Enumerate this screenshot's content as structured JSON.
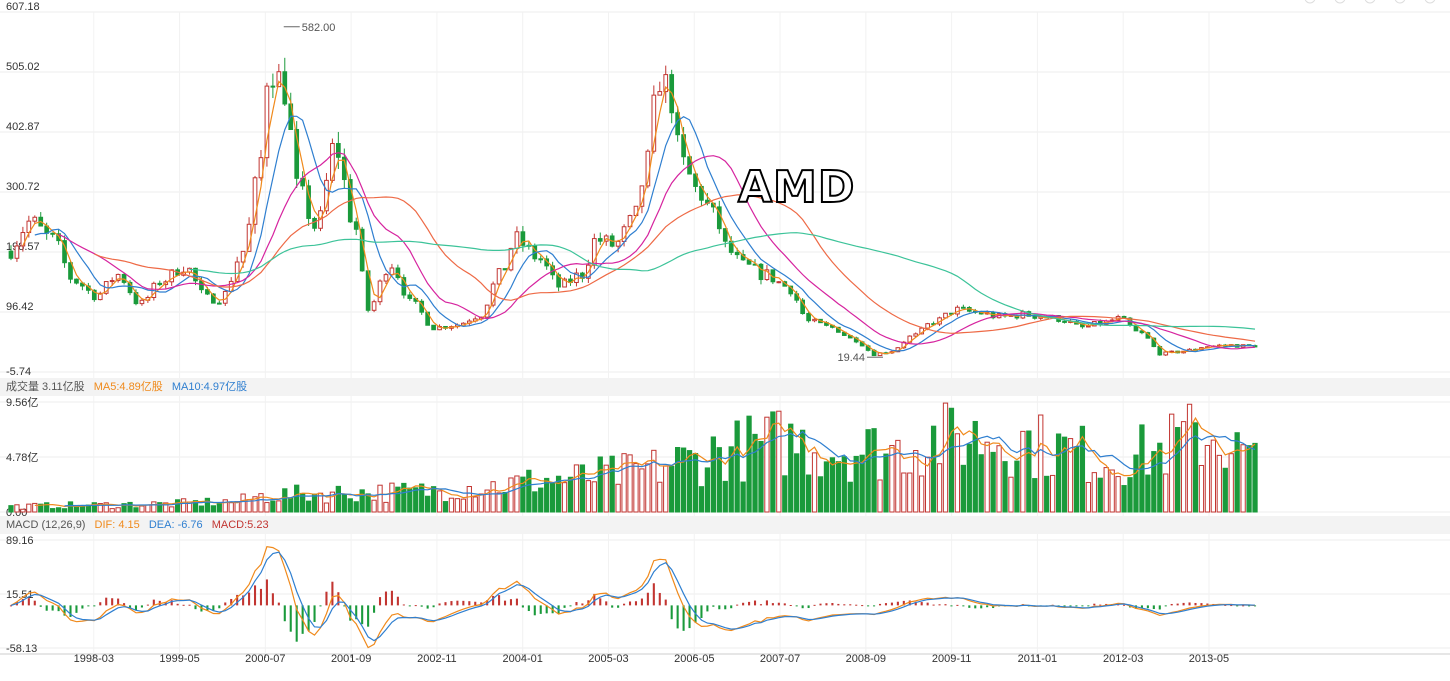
{
  "symbol": "AMD",
  "colors": {
    "up": "#c23531",
    "down": "#1a9a3b",
    "ma_orange": "#f08a1c",
    "ma_blue": "#2f7fd0",
    "ma_magenta": "#d6249f",
    "ma_coral": "#ee6a46",
    "ma_teal": "#3cc399",
    "dif": "#f08a1c",
    "dea": "#2f7fd0",
    "grid": "#ececec",
    "axis_text": "#333333"
  },
  "legend": {
    "volume": {
      "label": "成交量 3.11亿股",
      "ma5": "MA5:4.89亿股",
      "ma10": "MA10:4.97亿股"
    },
    "macd": {
      "label": "MACD (12,26,9)",
      "dif": "DIF: 4.15",
      "dea": "DEA: -6.76",
      "macd": "MACD:5.23"
    }
  },
  "chart_data": [
    {
      "type": "candlestick",
      "name": "price",
      "y_ticks": [
        "607.18",
        "505.02",
        "402.87",
        "300.72",
        "198.57",
        "96.42",
        "-5.74"
      ],
      "ylim": [
        -5.74,
        607.18
      ],
      "x_ticks": [
        "1998-03",
        "1999-05",
        "2000-07",
        "2001-09",
        "2002-11",
        "2004-01",
        "2005-03",
        "2006-05",
        "2007-07",
        "2008-09",
        "2009-11",
        "2011-01",
        "2012-03",
        "2013-05"
      ],
      "x_range": [
        1997.0,
        2014.0
      ],
      "annotations": {
        "max_label": "582.00",
        "max_value": 582.0,
        "max_x": 2000.75,
        "min_label": "19.44",
        "min_value": 19.44,
        "min_x": 2008.9
      },
      "keypoints": [
        [
          1997.0,
          200
        ],
        [
          1997.3,
          250
        ],
        [
          1997.6,
          220
        ],
        [
          1997.9,
          150
        ],
        [
          1998.2,
          125
        ],
        [
          1998.5,
          160
        ],
        [
          1998.8,
          110
        ],
        [
          1999.1,
          150
        ],
        [
          1999.4,
          175
        ],
        [
          1999.7,
          120
        ],
        [
          1999.9,
          120
        ],
        [
          2000.2,
          200
        ],
        [
          2000.4,
          320
        ],
        [
          2000.55,
          520
        ],
        [
          2000.75,
          480
        ],
        [
          2000.95,
          300
        ],
        [
          2001.2,
          240
        ],
        [
          2001.45,
          380
        ],
        [
          2001.7,
          250
        ],
        [
          2001.9,
          100
        ],
        [
          2002.2,
          180
        ],
        [
          2002.5,
          110
        ],
        [
          2002.8,
          70
        ],
        [
          2003.1,
          75
        ],
        [
          2003.4,
          90
        ],
        [
          2003.7,
          160
        ],
        [
          2003.9,
          220
        ],
        [
          2004.2,
          190
        ],
        [
          2004.5,
          140
        ],
        [
          2004.8,
          160
        ],
        [
          2005.0,
          220
        ],
        [
          2005.25,
          210
        ],
        [
          2005.5,
          250
        ],
        [
          2005.7,
          350
        ],
        [
          2005.85,
          500
        ],
        [
          2006.0,
          470
        ],
        [
          2006.15,
          350
        ],
        [
          2006.4,
          300
        ],
        [
          2006.6,
          260
        ],
        [
          2006.8,
          200
        ],
        [
          2007.0,
          175
        ],
        [
          2007.3,
          160
        ],
        [
          2007.6,
          140
        ],
        [
          2007.9,
          80
        ],
        [
          2008.2,
          70
        ],
        [
          2008.5,
          50
        ],
        [
          2008.8,
          25
        ],
        [
          2009.0,
          30
        ],
        [
          2009.3,
          55
        ],
        [
          2009.6,
          80
        ],
        [
          2009.9,
          100
        ],
        [
          2010.2,
          95
        ],
        [
          2010.5,
          88
        ],
        [
          2010.8,
          92
        ],
        [
          2011.0,
          90
        ],
        [
          2011.3,
          85
        ],
        [
          2011.6,
          70
        ],
        [
          2011.9,
          78
        ],
        [
          2012.1,
          85
        ],
        [
          2012.4,
          60
        ],
        [
          2012.7,
          25
        ],
        [
          2013.0,
          30
        ],
        [
          2013.3,
          38
        ],
        [
          2013.6,
          40
        ],
        [
          2013.9,
          38
        ],
        [
          2014.0,
          40
        ]
      ]
    },
    {
      "type": "bar",
      "name": "volume",
      "y_ticks": [
        "9.56亿",
        "4.78亿",
        "0.00"
      ],
      "ylim": [
        0,
        9.56
      ],
      "keypoints": [
        [
          1997.0,
          0.5
        ],
        [
          1998.0,
          0.6
        ],
        [
          1999.0,
          0.7
        ],
        [
          2000.0,
          0.9
        ],
        [
          2000.6,
          1.5
        ],
        [
          2001.5,
          1.7
        ],
        [
          2002.5,
          1.8
        ],
        [
          2003.5,
          2.3
        ],
        [
          2004.5,
          2.9
        ],
        [
          2005.5,
          3.5
        ],
        [
          2006.2,
          4.5
        ],
        [
          2006.8,
          5.5
        ],
        [
          2007.5,
          6.2
        ],
        [
          2008.3,
          5.6
        ],
        [
          2009.0,
          5.5
        ],
        [
          2009.6,
          6.5
        ],
        [
          2010.5,
          6.7
        ],
        [
          2011.3,
          5.6
        ],
        [
          2012.0,
          4.6
        ],
        [
          2012.6,
          5.3
        ],
        [
          2013.0,
          6.5
        ],
        [
          2013.4,
          6.8
        ],
        [
          2013.8,
          5.2
        ],
        [
          2014.0,
          4.5
        ]
      ]
    },
    {
      "type": "bar",
      "name": "macd",
      "y_ticks": [
        "89.16",
        "15.51",
        "-58.13"
      ],
      "ylim": [
        -58.13,
        89.16
      ]
    }
  ]
}
